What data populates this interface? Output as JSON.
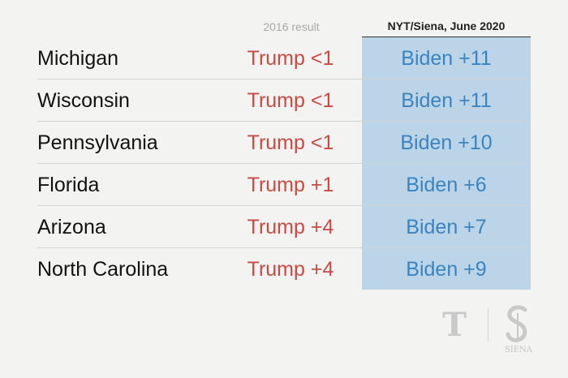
{
  "header": {
    "col_2016": "2016 result",
    "col_nyt": "NYT/Siena, June 2020"
  },
  "rows": [
    {
      "state": "Michigan",
      "result_2016": "Trump <1",
      "nyt_siena": "Biden +11"
    },
    {
      "state": "Wisconsin",
      "result_2016": "Trump <1",
      "nyt_siena": "Biden +11"
    },
    {
      "state": "Pennsylvania",
      "result_2016": "Trump <1",
      "nyt_siena": "Biden +10"
    },
    {
      "state": "Florida",
      "result_2016": "Trump +1",
      "nyt_siena": "Biden +6"
    },
    {
      "state": "Arizona",
      "result_2016": "Trump +4",
      "nyt_siena": "Biden +7"
    },
    {
      "state": "North Carolina",
      "result_2016": "Trump +4",
      "nyt_siena": "Biden +9"
    }
  ],
  "logos": {
    "nyt_mark": "T",
    "siena_text": "SIENA"
  },
  "colors": {
    "trump": "#c74b43",
    "biden": "#3a84c0",
    "biden_cell": "#bcd4e8",
    "background": "#f3f3f2"
  },
  "chart_data": {
    "type": "table",
    "columns": [
      "",
      "2016 result",
      "NYT/Siena, June 2020"
    ],
    "rows": [
      [
        "Michigan",
        "Trump <1",
        "Biden +11"
      ],
      [
        "Wisconsin",
        "Trump <1",
        "Biden +11"
      ],
      [
        "Pennsylvania",
        "Trump <1",
        "Biden +10"
      ],
      [
        "Florida",
        "Trump +1",
        "Biden +6"
      ],
      [
        "Arizona",
        "Trump +4",
        "Biden +7"
      ],
      [
        "North Carolina",
        "Trump +4",
        "Biden +9"
      ]
    ]
  }
}
